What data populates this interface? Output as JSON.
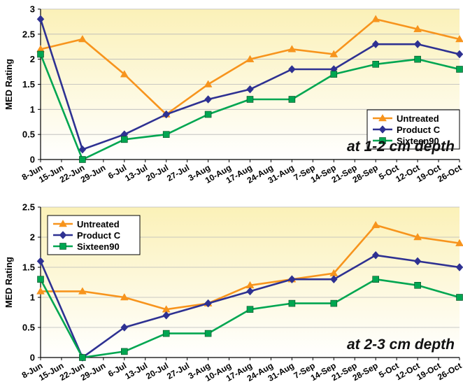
{
  "chart_data": [
    {
      "type": "line",
      "annotation": "at 1-2 cm depth",
      "ylabel": "MED Rating",
      "ylim": [
        0,
        3
      ],
      "y_ticks": [
        "0",
        "0.5",
        "1",
        "1.5",
        "2",
        "2.5",
        "3"
      ],
      "x_ticks": [
        "8-Jun",
        "15-Jun",
        "22-Jun",
        "29-Jun",
        "6-Jul",
        "13-Jul",
        "20-Jul",
        "27-Jul",
        "3-Aug",
        "10-Aug",
        "17-Aug",
        "24-Aug",
        "31-Aug",
        "7-Sep",
        "14-Sep",
        "21-Sep",
        "28-Sep",
        "5-Oct",
        "12-Oct",
        "19-Oct",
        "26-Oct"
      ],
      "legend_position": "bottom-right",
      "series": [
        {
          "name": "Untreated",
          "color": "#F7941D",
          "marker": "triangle",
          "points": [
            [
              "8-Jun",
              2.2
            ],
            [
              "22-Jun",
              2.4
            ],
            [
              "6-Jul",
              1.7
            ],
            [
              "20-Jul",
              0.9
            ],
            [
              "3-Aug",
              1.5
            ],
            [
              "17-Aug",
              2.0
            ],
            [
              "31-Aug",
              2.2
            ],
            [
              "14-Sep",
              2.1
            ],
            [
              "28-Sep",
              2.8
            ],
            [
              "12-Oct",
              2.6
            ],
            [
              "26-Oct",
              2.4
            ]
          ]
        },
        {
          "name": "Product C",
          "color": "#2E3192",
          "marker": "diamond",
          "points": [
            [
              "8-Jun",
              2.8
            ],
            [
              "22-Jun",
              0.2
            ],
            [
              "6-Jul",
              0.5
            ],
            [
              "20-Jul",
              0.9
            ],
            [
              "3-Aug",
              1.2
            ],
            [
              "17-Aug",
              1.4
            ],
            [
              "31-Aug",
              1.8
            ],
            [
              "14-Sep",
              1.8
            ],
            [
              "28-Sep",
              2.3
            ],
            [
              "12-Oct",
              2.3
            ],
            [
              "26-Oct",
              2.1
            ]
          ]
        },
        {
          "name": "Sixteen90",
          "color": "#00A651",
          "marker": "square",
          "points": [
            [
              "8-Jun",
              2.1
            ],
            [
              "22-Jun",
              0.0
            ],
            [
              "6-Jul",
              0.4
            ],
            [
              "20-Jul",
              0.5
            ],
            [
              "3-Aug",
              0.9
            ],
            [
              "17-Aug",
              1.2
            ],
            [
              "31-Aug",
              1.2
            ],
            [
              "14-Sep",
              1.7
            ],
            [
              "28-Sep",
              1.9
            ],
            [
              "12-Oct",
              2.0
            ],
            [
              "26-Oct",
              1.8
            ]
          ]
        }
      ]
    },
    {
      "type": "line",
      "annotation": "at 2-3 cm depth",
      "ylabel": "MED Rating",
      "ylim": [
        0,
        2.5
      ],
      "y_ticks": [
        "0",
        "0.5",
        "1",
        "1.5",
        "2",
        "2.5"
      ],
      "x_ticks": [
        "8-Jun",
        "15-Jun",
        "22-Jun",
        "29-Jun",
        "6-Jul",
        "13-Jul",
        "20-Jul",
        "27-Jul",
        "3-Aug",
        "10-Aug",
        "17-Aug",
        "24-Aug",
        "31-Aug",
        "7-Sep",
        "14-Sep",
        "21-Sep",
        "28-Sep",
        "5-Oct",
        "12-Oct",
        "19-Oct",
        "26-Oct"
      ],
      "legend_position": "top-left",
      "series": [
        {
          "name": "Untreated",
          "color": "#F7941D",
          "marker": "triangle",
          "points": [
            [
              "8-Jun",
              1.1
            ],
            [
              "22-Jun",
              1.1
            ],
            [
              "6-Jul",
              1.0
            ],
            [
              "20-Jul",
              0.8
            ],
            [
              "3-Aug",
              0.9
            ],
            [
              "17-Aug",
              1.2
            ],
            [
              "31-Aug",
              1.3
            ],
            [
              "14-Sep",
              1.4
            ],
            [
              "28-Sep",
              2.2
            ],
            [
              "12-Oct",
              2.0
            ],
            [
              "26-Oct",
              1.9
            ]
          ]
        },
        {
          "name": "Product C",
          "color": "#2E3192",
          "marker": "diamond",
          "points": [
            [
              "8-Jun",
              1.6
            ],
            [
              "22-Jun",
              0.0
            ],
            [
              "6-Jul",
              0.5
            ],
            [
              "20-Jul",
              0.7
            ],
            [
              "3-Aug",
              0.9
            ],
            [
              "17-Aug",
              1.1
            ],
            [
              "31-Aug",
              1.3
            ],
            [
              "14-Sep",
              1.3
            ],
            [
              "28-Sep",
              1.7
            ],
            [
              "12-Oct",
              1.6
            ],
            [
              "26-Oct",
              1.5
            ]
          ]
        },
        {
          "name": "Sixteen90",
          "color": "#00A651",
          "marker": "square",
          "points": [
            [
              "8-Jun",
              1.3
            ],
            [
              "22-Jun",
              0.0
            ],
            [
              "6-Jul",
              0.1
            ],
            [
              "20-Jul",
              0.4
            ],
            [
              "3-Aug",
              0.4
            ],
            [
              "17-Aug",
              0.8
            ],
            [
              "31-Aug",
              0.9
            ],
            [
              "14-Sep",
              0.9
            ],
            [
              "28-Sep",
              1.3
            ],
            [
              "12-Oct",
              1.2
            ],
            [
              "26-Oct",
              1.0
            ]
          ]
        }
      ]
    }
  ]
}
